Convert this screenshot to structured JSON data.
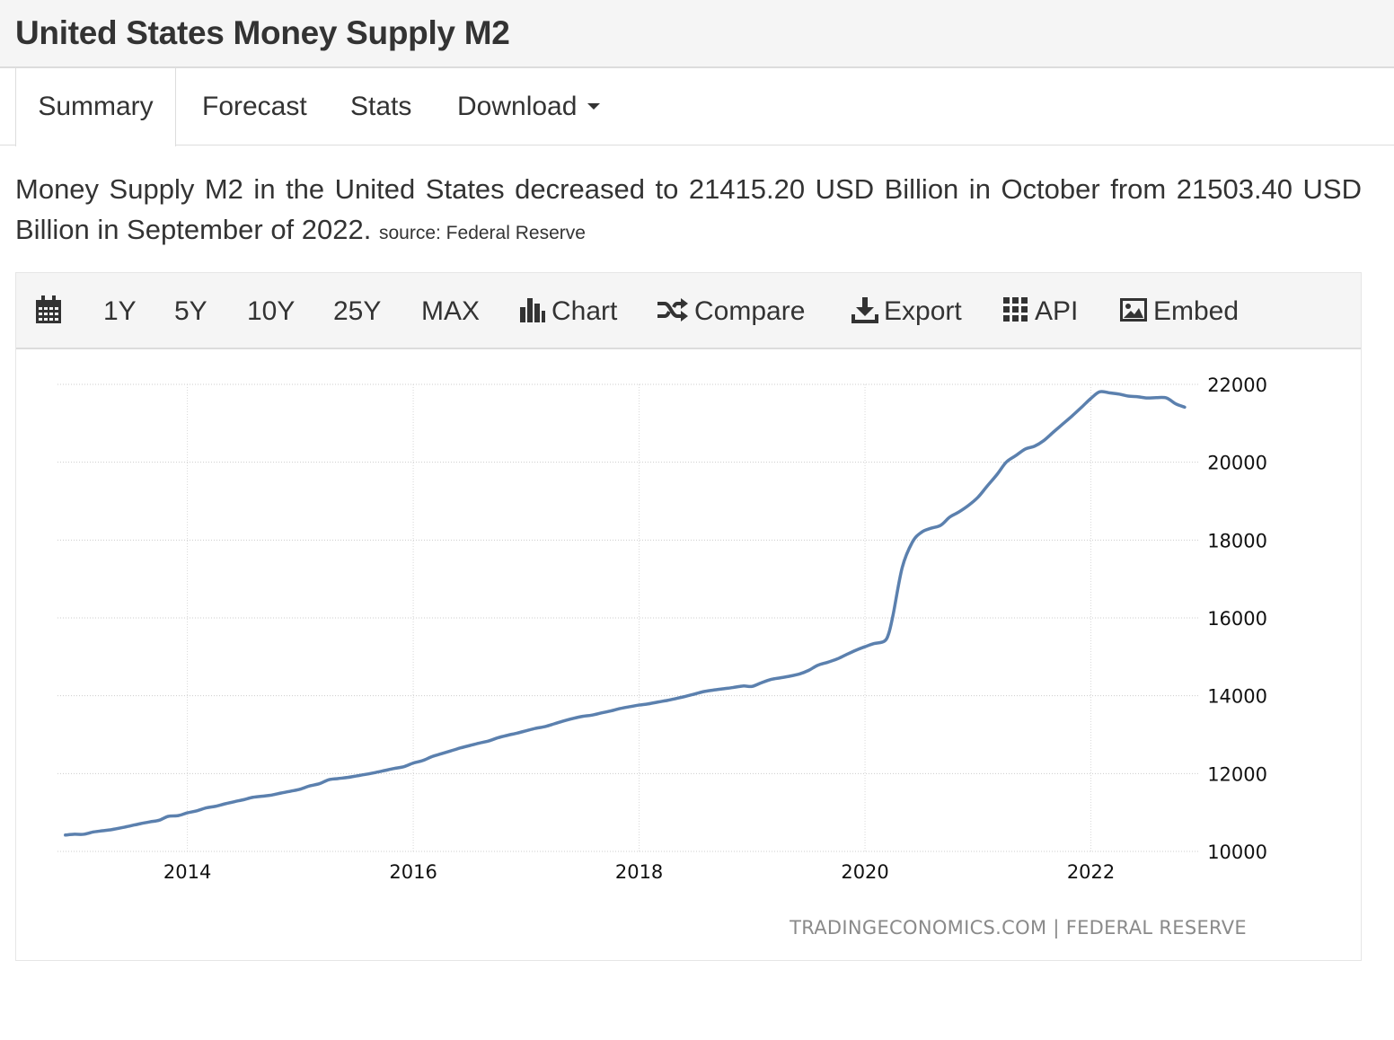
{
  "page": {
    "title": "United States Money Supply M2"
  },
  "tabs": [
    {
      "label": "Summary",
      "active": true
    },
    {
      "label": "Forecast",
      "active": false
    },
    {
      "label": "Stats",
      "active": false
    },
    {
      "label": "Download",
      "active": false
    }
  ],
  "summary": {
    "text": "Money Supply M2 in the United States decreased to 21415.20 USD Billion in October from 21503.40 USD Billion in September of 2022.",
    "source": "source: Federal Reserve"
  },
  "toolbar": {
    "calendar_icon": "calendar-icon",
    "ranges": [
      "1Y",
      "5Y",
      "10Y",
      "25Y",
      "MAX"
    ],
    "chart_label": "Chart",
    "compare_label": "Compare",
    "export_label": "Export",
    "api_label": "API",
    "embed_label": "Embed"
  },
  "chart_data": {
    "type": "line",
    "title": "",
    "xlabel": "",
    "ylabel": "",
    "line_color": "#5b80ae",
    "grid": true,
    "x_ticks": [
      "2014",
      "2016",
      "2018",
      "2020",
      "2022"
    ],
    "y_ticks": [
      "10000",
      "12000",
      "14000",
      "16000",
      "18000",
      "20000",
      "22000"
    ],
    "ylim": [
      10000,
      22000
    ],
    "xlim": [
      2012.85,
      2022.95
    ],
    "credit": "TRADINGECONOMICS.COM | FEDERAL RESERVE",
    "series": [
      {
        "name": "Money Supply M2 (USD Billion)",
        "points": [
          [
            2012.92,
            10420
          ],
          [
            2013.0,
            10440
          ],
          [
            2013.08,
            10440
          ],
          [
            2013.17,
            10500
          ],
          [
            2013.25,
            10530
          ],
          [
            2013.33,
            10560
          ],
          [
            2013.42,
            10610
          ],
          [
            2013.5,
            10660
          ],
          [
            2013.58,
            10710
          ],
          [
            2013.67,
            10760
          ],
          [
            2013.75,
            10800
          ],
          [
            2013.83,
            10900
          ],
          [
            2013.92,
            10920
          ],
          [
            2014.0,
            10990
          ],
          [
            2014.08,
            11040
          ],
          [
            2014.17,
            11120
          ],
          [
            2014.25,
            11160
          ],
          [
            2014.33,
            11220
          ],
          [
            2014.42,
            11280
          ],
          [
            2014.5,
            11330
          ],
          [
            2014.58,
            11390
          ],
          [
            2014.67,
            11420
          ],
          [
            2014.75,
            11450
          ],
          [
            2014.83,
            11500
          ],
          [
            2014.92,
            11550
          ],
          [
            2015.0,
            11600
          ],
          [
            2015.08,
            11680
          ],
          [
            2015.17,
            11740
          ],
          [
            2015.25,
            11840
          ],
          [
            2015.33,
            11870
          ],
          [
            2015.42,
            11900
          ],
          [
            2015.5,
            11940
          ],
          [
            2015.58,
            11980
          ],
          [
            2015.67,
            12030
          ],
          [
            2015.75,
            12080
          ],
          [
            2015.83,
            12130
          ],
          [
            2015.92,
            12180
          ],
          [
            2016.0,
            12270
          ],
          [
            2016.08,
            12330
          ],
          [
            2016.17,
            12440
          ],
          [
            2016.25,
            12510
          ],
          [
            2016.33,
            12580
          ],
          [
            2016.42,
            12660
          ],
          [
            2016.5,
            12720
          ],
          [
            2016.58,
            12780
          ],
          [
            2016.67,
            12840
          ],
          [
            2016.75,
            12920
          ],
          [
            2016.83,
            12980
          ],
          [
            2016.92,
            13040
          ],
          [
            2017.0,
            13100
          ],
          [
            2017.08,
            13160
          ],
          [
            2017.17,
            13210
          ],
          [
            2017.25,
            13280
          ],
          [
            2017.33,
            13350
          ],
          [
            2017.42,
            13420
          ],
          [
            2017.5,
            13470
          ],
          [
            2017.58,
            13500
          ],
          [
            2017.67,
            13560
          ],
          [
            2017.75,
            13610
          ],
          [
            2017.83,
            13670
          ],
          [
            2017.92,
            13720
          ],
          [
            2018.0,
            13760
          ],
          [
            2018.08,
            13790
          ],
          [
            2018.17,
            13840
          ],
          [
            2018.25,
            13880
          ],
          [
            2018.33,
            13930
          ],
          [
            2018.42,
            13990
          ],
          [
            2018.5,
            14050
          ],
          [
            2018.58,
            14110
          ],
          [
            2018.67,
            14150
          ],
          [
            2018.75,
            14180
          ],
          [
            2018.83,
            14210
          ],
          [
            2018.92,
            14250
          ],
          [
            2019.0,
            14240
          ],
          [
            2019.08,
            14330
          ],
          [
            2019.17,
            14420
          ],
          [
            2019.25,
            14460
          ],
          [
            2019.33,
            14500
          ],
          [
            2019.42,
            14560
          ],
          [
            2019.5,
            14650
          ],
          [
            2019.58,
            14780
          ],
          [
            2019.67,
            14860
          ],
          [
            2019.75,
            14940
          ],
          [
            2019.83,
            15050
          ],
          [
            2019.92,
            15170
          ],
          [
            2020.0,
            15260
          ],
          [
            2020.08,
            15340
          ],
          [
            2020.17,
            15400
          ],
          [
            2020.21,
            15600
          ],
          [
            2020.25,
            16100
          ],
          [
            2020.33,
            17300
          ],
          [
            2020.42,
            17950
          ],
          [
            2020.5,
            18200
          ],
          [
            2020.58,
            18300
          ],
          [
            2020.67,
            18380
          ],
          [
            2020.75,
            18590
          ],
          [
            2020.83,
            18720
          ],
          [
            2020.92,
            18900
          ],
          [
            2021.0,
            19100
          ],
          [
            2021.08,
            19380
          ],
          [
            2021.17,
            19690
          ],
          [
            2021.25,
            20000
          ],
          [
            2021.33,
            20160
          ],
          [
            2021.42,
            20340
          ],
          [
            2021.5,
            20410
          ],
          [
            2021.58,
            20550
          ],
          [
            2021.67,
            20780
          ],
          [
            2021.75,
            20980
          ],
          [
            2021.83,
            21180
          ],
          [
            2021.92,
            21420
          ],
          [
            2022.0,
            21640
          ],
          [
            2022.08,
            21810
          ],
          [
            2022.17,
            21780
          ],
          [
            2022.25,
            21750
          ],
          [
            2022.33,
            21700
          ],
          [
            2022.42,
            21680
          ],
          [
            2022.5,
            21650
          ],
          [
            2022.58,
            21660
          ],
          [
            2022.67,
            21650
          ],
          [
            2022.75,
            21503.4
          ],
          [
            2022.83,
            21415.2
          ]
        ]
      }
    ]
  }
}
